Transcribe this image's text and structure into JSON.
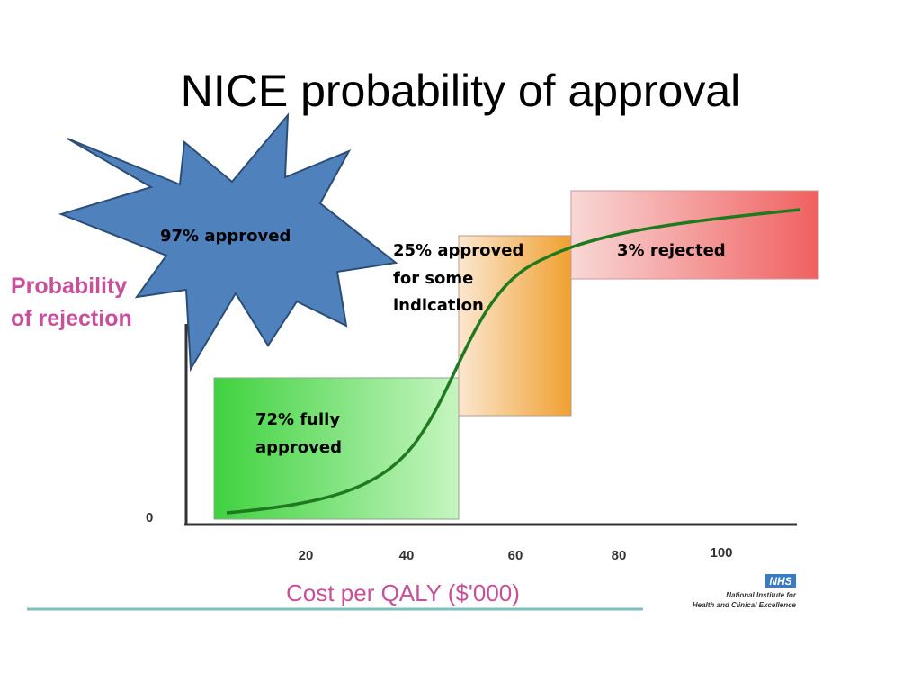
{
  "slide": {
    "title": "NICE probability of approval"
  },
  "figure": {
    "y_label_lines": [
      "Probability",
      "of rejection"
    ],
    "y_ticks": [
      0
    ],
    "x_ticks": [
      20,
      40,
      60,
      80,
      100
    ],
    "x_label": "Cost per QALY ($'000)",
    "logo": "NHS",
    "logo_lines": [
      "National Institute for",
      "Health and Clinical Excellence"
    ]
  },
  "callouts": {
    "burst": "97% approved",
    "green": [
      "72% fully",
      "approved"
    ],
    "orange": [
      "25% approved",
      "for some",
      "indication"
    ],
    "red": "3% rejected"
  }
}
